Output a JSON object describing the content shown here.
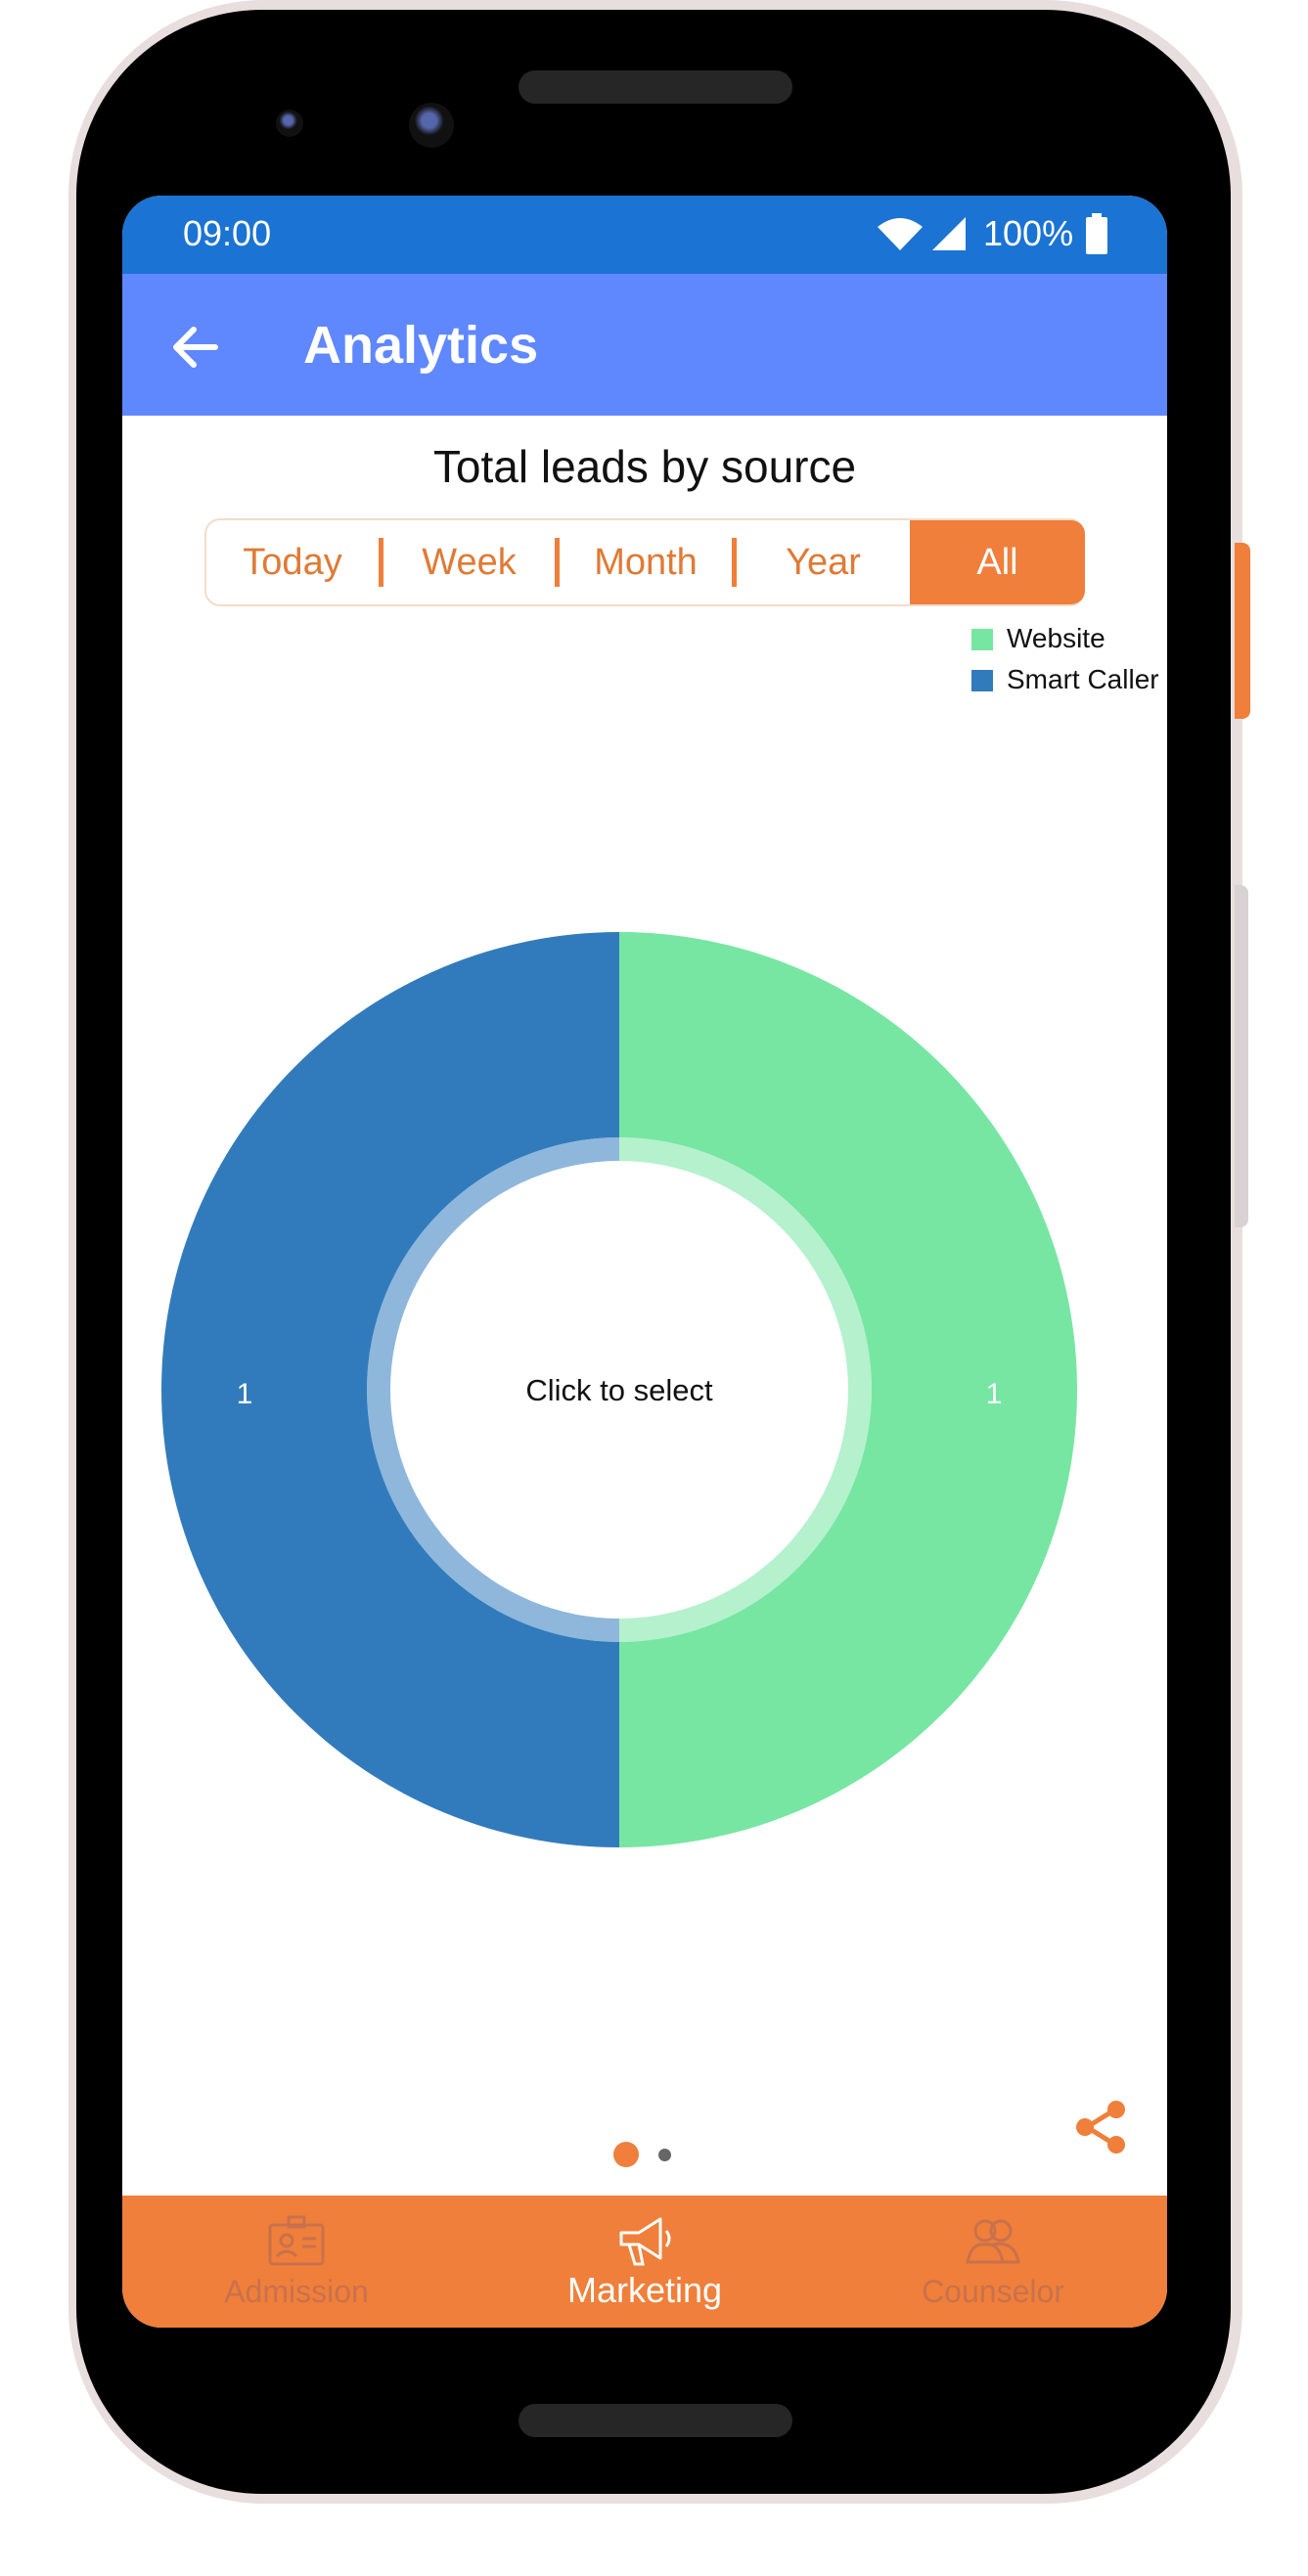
{
  "status_bar": {
    "time": "09:00",
    "battery": "100%",
    "icons": [
      "wifi-icon",
      "signal-icon",
      "battery-icon"
    ]
  },
  "app_bar": {
    "title": "Analytics",
    "back_icon": "arrow-back-icon"
  },
  "chart_title": "Total leads by source",
  "filter_tabs": {
    "items": [
      "Today",
      "Week",
      "Month",
      "Year",
      "All"
    ],
    "selected": "All"
  },
  "center_label": "Click to select",
  "chart_data": {
    "type": "pie",
    "title": "Total leads by source",
    "labels": [
      "Website",
      "Smart Caller"
    ],
    "values": [
      1,
      1
    ],
    "colors": [
      "#77e6a2",
      "#317bbd"
    ],
    "donut": true,
    "legend_position": "top-right"
  },
  "pager": {
    "count": 2,
    "active": 1
  },
  "share_icon": "share-icon",
  "bottom_nav": {
    "items": [
      {
        "label": "Admission",
        "icon": "id-card-icon"
      },
      {
        "label": "Marketing",
        "icon": "megaphone-icon"
      },
      {
        "label": "Counselor",
        "icon": "users-icon"
      }
    ],
    "active": "Marketing"
  },
  "colors": {
    "status_bar": "#1b73d3",
    "app_bar": "#5f87fe",
    "accent": "#ef7f3a"
  }
}
